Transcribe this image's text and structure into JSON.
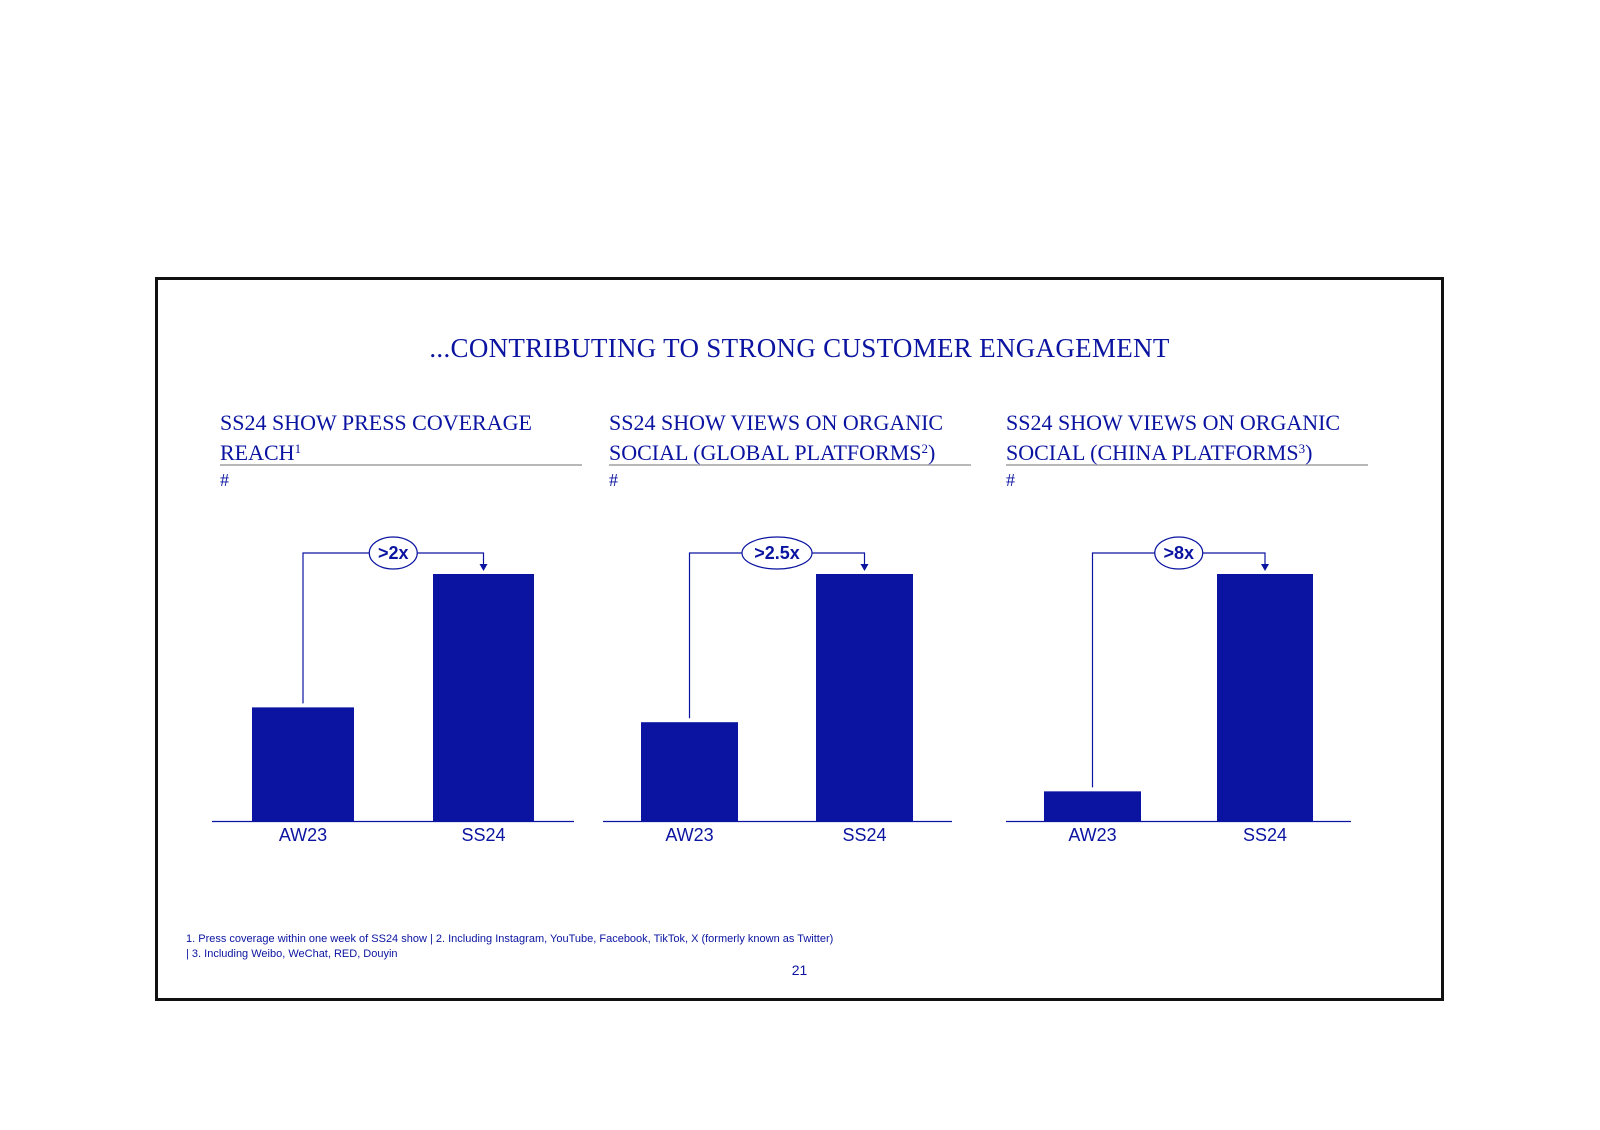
{
  "slide": {
    "title": "...CONTRIBUTING TO STRONG CUSTOMER ENGAGEMENT",
    "footnote_line1": "1. Press coverage within one week of SS24 show | 2. Including Instagram, YouTube, Facebook, TikTok, X (formerly known as Twitter)",
    "footnote_line2": "| 3. Including Weibo, WeChat, RED, Douyin",
    "page_number": "21"
  },
  "colors": {
    "accent": "#0A14A0",
    "rule": "#b8b8b8",
    "border": "#111111"
  },
  "panels": [
    {
      "title_line1": "SS24 SHOW PRESS COVERAGE",
      "title_line2": "REACH",
      "title_sup": "1",
      "title_suffix": "",
      "unit": "#"
    },
    {
      "title_line1": "SS24 SHOW VIEWS ON ORGANIC",
      "title_line2": "SOCIAL (GLOBAL PLATFORMS",
      "title_sup": "2",
      "title_suffix": ")",
      "unit": "#"
    },
    {
      "title_line1": "SS24 SHOW VIEWS ON ORGANIC",
      "title_line2": "SOCIAL (CHINA PLATFORMS",
      "title_sup": "3",
      "title_suffix": ")",
      "unit": "#"
    }
  ],
  "chart_data": [
    {
      "type": "bar",
      "title": "SS24 SHOW PRESS COVERAGE REACH",
      "ylabel": "#",
      "categories": [
        "AW23",
        "SS24"
      ],
      "values": [
        46,
        100
      ],
      "ylim": [
        0,
        100
      ],
      "annotation": ">2x"
    },
    {
      "type": "bar",
      "title": "SS24 SHOW VIEWS ON ORGANIC SOCIAL (GLOBAL PLATFORMS)",
      "ylabel": "#",
      "categories": [
        "AW23",
        "SS24"
      ],
      "values": [
        40,
        100
      ],
      "ylim": [
        0,
        100
      ],
      "annotation": ">2.5x"
    },
    {
      "type": "bar",
      "title": "SS24 SHOW VIEWS ON ORGANIC SOCIAL (CHINA PLATFORMS)",
      "ylabel": "#",
      "categories": [
        "AW23",
        "SS24"
      ],
      "values": [
        12,
        100
      ],
      "ylim": [
        0,
        100
      ],
      "annotation": ">8x"
    }
  ]
}
